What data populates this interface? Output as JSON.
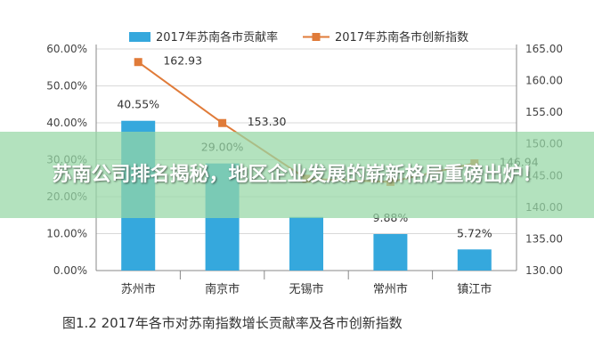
{
  "chart_data": {
    "type": "bar",
    "categories": [
      "苏州市",
      "南京市",
      "无锡市",
      "常州市",
      "镇江市"
    ],
    "series": [
      {
        "name": "2017年苏南各市贡献率",
        "type": "bar",
        "axis": "left",
        "values": [
          40.55,
          29.0,
          14.5,
          9.88,
          5.72
        ],
        "labels": [
          "40.55%",
          "29.00%",
          "",
          "9.88%",
          "5.72%"
        ],
        "color": "#35a8dd"
      },
      {
        "name": "2017年苏南各市创新指数",
        "type": "line",
        "axis": "right",
        "values": [
          162.93,
          153.3,
          144.5,
          144.0,
          146.94
        ],
        "labels": [
          "162.93",
          "153.30",
          "",
          "",
          "146.94"
        ],
        "color": "#e07b39"
      }
    ],
    "y_left": {
      "range": [
        0,
        60
      ],
      "ticks": [
        "0.00%",
        "10.00%",
        "20.00%",
        "30.00%",
        "40.00%",
        "50.00%",
        "60.00%"
      ]
    },
    "y_right": {
      "range": [
        130,
        165
      ],
      "ticks": [
        "130.00",
        "135.00",
        "140.00",
        "145.00",
        "150.00",
        "155.00",
        "160.00",
        "165.00"
      ]
    },
    "legend_position": "top",
    "caption": "图1.2  2017年各市对苏南指数增长贡献率及各市创新指数"
  },
  "overlay": {
    "headline": "苏南公司排名揭秘，地区企业发展的崭新格局重磅出炉！"
  }
}
